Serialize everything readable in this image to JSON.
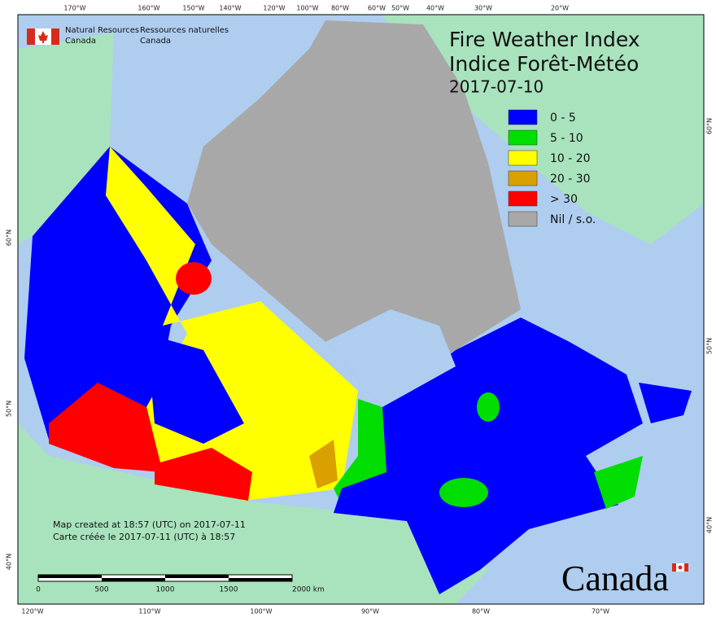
{
  "branding": {
    "en_line1": "Natural Resources",
    "en_line2": "Canada",
    "fr_line1": "Ressources naturelles",
    "fr_line2": "Canada"
  },
  "title": {
    "en": "Fire Weather Index",
    "fr": "Indice Forêt-Météo",
    "date": "2017-07-10"
  },
  "legend": [
    {
      "label": "0 - 5",
      "color": "#0000ff"
    },
    {
      "label": "5 - 10",
      "color": "#00dd00"
    },
    {
      "label": "10 - 20",
      "color": "#ffff00"
    },
    {
      "label": "20 - 30",
      "color": "#d9a000"
    },
    {
      "label": "> 30",
      "color": "#ff0000"
    },
    {
      "label": "Nil / s.o.",
      "color": "#a8a8a8"
    }
  ],
  "top_longitudes": [
    "170°W",
    "160°W",
    "150°W",
    "140°W",
    "120°W",
    "100°W",
    "80°W",
    "60°W",
    "50°W",
    "40°W",
    "30°W",
    "20°W"
  ],
  "bottom_longitudes": [
    "120°W",
    "110°W",
    "100°W",
    "90°W",
    "80°W",
    "70°W"
  ],
  "left_latitudes": [
    "60°N",
    "50°N",
    "40°N"
  ],
  "right_latitudes": [
    "60°N",
    "50°N",
    "40°N"
  ],
  "notes": [
    "Map created at 18:57 (UTC) on 2017-07-11",
    "Carte créée le 2017-07-11 (UTC) à 18:57"
  ],
  "scale": [
    "0",
    "500",
    "1000",
    "1500",
    "2000 km"
  ],
  "wordmark": "Canada"
}
